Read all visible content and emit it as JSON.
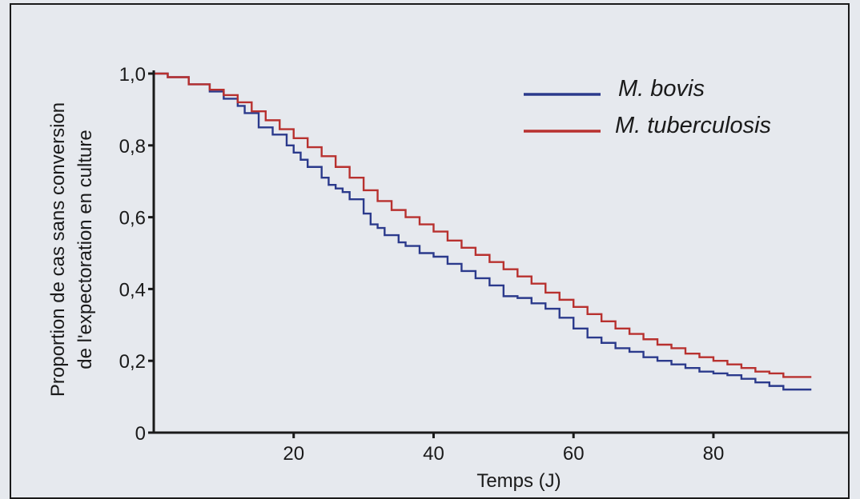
{
  "chart_data": {
    "type": "line",
    "xlabel": "Temps (J)",
    "ylabel_line1": "Proportion de cas sans conversion",
    "ylabel_line2": "de l'expectoration en culture",
    "xlim": [
      0,
      95
    ],
    "ylim": [
      0,
      1.0
    ],
    "x_ticks": [
      20,
      40,
      60,
      80
    ],
    "x_tick_labels": [
      "20",
      "40",
      "60",
      "80"
    ],
    "y_ticks": [
      0,
      0.2,
      0.4,
      0.6,
      0.8,
      1.0
    ],
    "y_tick_labels": [
      "0",
      "0,2",
      "0,4",
      "0,6",
      "0,8",
      "1,0"
    ],
    "grid": false,
    "legend_position": "top-right",
    "series": [
      {
        "name": "M. bovis",
        "color": "#2b3a8c",
        "x": [
          0,
          2,
          5,
          8,
          10,
          12,
          13,
          15,
          17,
          19,
          20,
          21,
          22,
          24,
          25,
          26,
          27,
          28,
          30,
          31,
          32,
          33,
          35,
          36,
          38,
          40,
          42,
          44,
          46,
          48,
          50,
          52,
          54,
          56,
          58,
          60,
          62,
          64,
          66,
          68,
          70,
          72,
          74,
          76,
          78,
          80,
          82,
          84,
          86,
          88,
          90,
          92,
          94
        ],
        "y": [
          1.0,
          0.99,
          0.97,
          0.95,
          0.93,
          0.91,
          0.89,
          0.85,
          0.83,
          0.8,
          0.78,
          0.76,
          0.74,
          0.71,
          0.69,
          0.68,
          0.67,
          0.65,
          0.61,
          0.58,
          0.57,
          0.55,
          0.53,
          0.52,
          0.5,
          0.49,
          0.47,
          0.45,
          0.43,
          0.41,
          0.38,
          0.375,
          0.36,
          0.345,
          0.32,
          0.29,
          0.265,
          0.25,
          0.235,
          0.225,
          0.21,
          0.2,
          0.19,
          0.18,
          0.17,
          0.165,
          0.16,
          0.15,
          0.14,
          0.13,
          0.12,
          0.12,
          0.12
        ]
      },
      {
        "name": "M. tuberculosis",
        "color": "#b8312f",
        "x": [
          0,
          2,
          5,
          8,
          10,
          12,
          14,
          16,
          18,
          20,
          22,
          24,
          26,
          28,
          30,
          32,
          34,
          36,
          38,
          40,
          42,
          44,
          46,
          48,
          50,
          52,
          54,
          56,
          58,
          60,
          62,
          64,
          66,
          68,
          70,
          72,
          74,
          76,
          78,
          80,
          82,
          84,
          86,
          88,
          90,
          92,
          94
        ],
        "y": [
          1.0,
          0.99,
          0.97,
          0.955,
          0.94,
          0.92,
          0.895,
          0.87,
          0.845,
          0.82,
          0.795,
          0.77,
          0.74,
          0.71,
          0.675,
          0.645,
          0.62,
          0.6,
          0.58,
          0.56,
          0.535,
          0.515,
          0.495,
          0.475,
          0.455,
          0.435,
          0.415,
          0.39,
          0.37,
          0.35,
          0.33,
          0.31,
          0.29,
          0.275,
          0.26,
          0.245,
          0.235,
          0.22,
          0.21,
          0.2,
          0.19,
          0.18,
          0.17,
          0.165,
          0.155,
          0.155,
          0.155
        ]
      }
    ]
  }
}
